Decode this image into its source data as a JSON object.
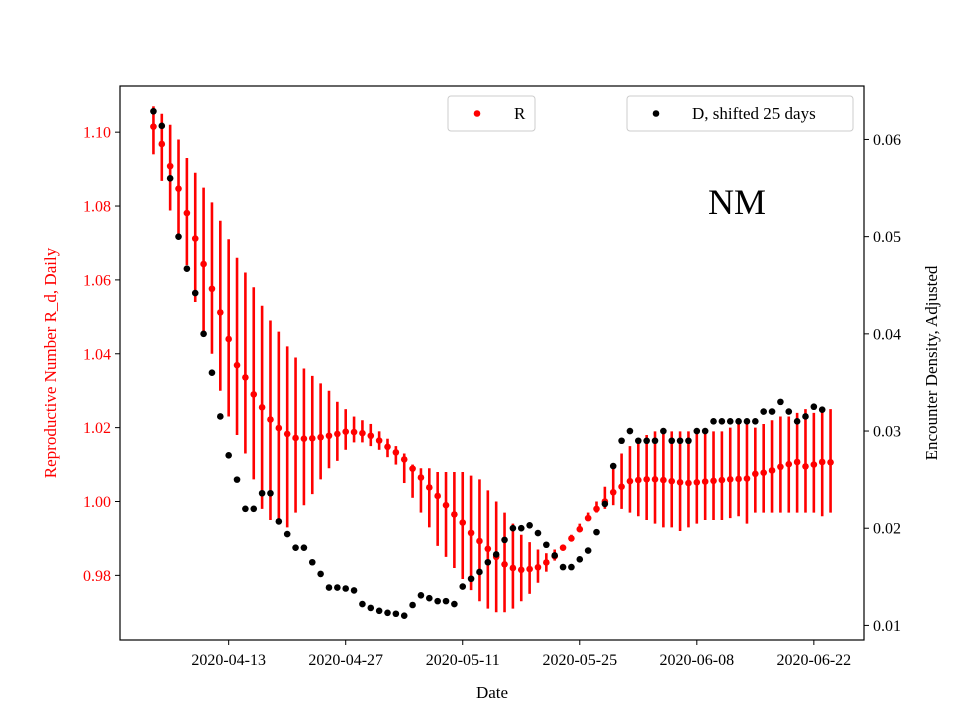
{
  "chart_data": {
    "type": "scatter",
    "xlabel": "Date",
    "ylabel_left": "Reproductive Number R_d, Daily",
    "ylabel_right": "Encounter Density, Adjusted",
    "annotation": "NM",
    "x_ticks": [
      "2020-04-13",
      "2020-04-27",
      "2020-05-11",
      "2020-05-25",
      "2020-06-08",
      "2020-06-22"
    ],
    "y_left_ticks": [
      "0.98",
      "1.00",
      "1.02",
      "1.04",
      "1.06",
      "1.08",
      "1.10"
    ],
    "y_right_ticks": [
      "0.01",
      "0.02",
      "0.03",
      "0.04",
      "0.05",
      "0.06"
    ],
    "x_range": [
      "2020-03-31",
      "2020-06-28"
    ],
    "y_left_range": [
      0.9625,
      1.1125
    ],
    "y_right_range": [
      0.0085,
      0.0655
    ],
    "legend_left": {
      "label": "R",
      "placement": "upper-center"
    },
    "legend_right": {
      "label": "D, shifted 25 days",
      "placement": "upper-right"
    },
    "colors": {
      "R": "#ff0000",
      "D": "#000000",
      "left_axis": "#ff0000",
      "right_axis": "#000000"
    },
    "series": [
      {
        "name": "R",
        "axis": "left",
        "start_date": "2020-04-04",
        "values": [
          1.1015,
          1.0968,
          1.0908,
          1.0847,
          1.0781,
          1.0712,
          1.0643,
          1.0576,
          1.0512,
          1.044,
          1.0369,
          1.0336,
          1.029,
          1.0255,
          1.0222,
          1.0199,
          1.0183,
          1.0172,
          1.017,
          1.0171,
          1.0174,
          1.0178,
          1.0183,
          1.0189,
          1.0188,
          1.0185,
          1.0178,
          1.0165,
          1.0148,
          1.0133,
          1.0114,
          1.0089,
          1.0065,
          1.0038,
          1.0015,
          0.999,
          0.9965,
          0.9943,
          0.9915,
          0.9893,
          0.9872,
          0.985,
          0.983,
          0.982,
          0.9815,
          0.9817,
          0.9822,
          0.9835,
          0.9852,
          0.9875,
          0.99,
          0.9925,
          0.9955,
          0.998,
          1.0,
          1.0025,
          1.004,
          1.0055,
          1.0058,
          1.006,
          1.006,
          1.0058,
          1.0055,
          1.0052,
          1.005,
          1.0052,
          1.0054,
          1.0056,
          1.0058,
          1.006,
          1.0061,
          1.0062,
          1.0075,
          1.0078,
          1.0084,
          1.0094,
          1.0101,
          1.0107,
          1.0095,
          1.01,
          1.0107,
          1.0106
        ],
        "err_low": [
          1.094,
          1.0868,
          1.0788,
          1.072,
          1.064,
          1.054,
          1.046,
          1.04,
          1.03,
          1.023,
          1.018,
          1.013,
          1.006,
          0.998,
          0.995,
          0.994,
          0.993,
          0.997,
          0.999,
          1.002,
          1.006,
          1.009,
          1.011,
          1.014,
          1.016,
          1.016,
          1.015,
          1.014,
          1.012,
          1.01,
          1.005,
          1.001,
          0.997,
          0.993,
          0.988,
          0.985,
          0.982,
          0.979,
          0.976,
          0.973,
          0.971,
          0.97,
          0.97,
          0.971,
          0.973,
          0.975,
          0.978,
          0.981,
          0.984,
          0.987,
          0.99,
          0.993,
          0.995,
          0.997,
          0.998,
          0.999,
          0.998,
          0.997,
          0.996,
          0.995,
          0.994,
          0.993,
          0.993,
          0.992,
          0.993,
          0.994,
          0.995,
          0.995,
          0.995,
          0.9955,
          0.996,
          0.994,
          0.997,
          0.997,
          0.997,
          0.997,
          0.997,
          0.997,
          0.997,
          0.997,
          0.996,
          0.997
        ],
        "err_high": [
          1.107,
          1.105,
          1.102,
          1.098,
          1.093,
          1.089,
          1.085,
          1.081,
          1.076,
          1.071,
          1.066,
          1.062,
          1.058,
          1.053,
          1.049,
          1.046,
          1.042,
          1.039,
          1.036,
          1.034,
          1.032,
          1.03,
          1.027,
          1.025,
          1.023,
          1.022,
          1.021,
          1.019,
          1.017,
          1.015,
          1.013,
          1.01,
          1.009,
          1.009,
          1.008,
          1.008,
          1.008,
          1.008,
          1.007,
          1.006,
          1.003,
          1.0,
          0.997,
          0.994,
          0.991,
          0.989,
          0.987,
          0.986,
          0.987,
          0.988,
          0.991,
          0.994,
          0.997,
          1.0,
          1.004,
          1.009,
          1.013,
          1.015,
          1.017,
          1.018,
          1.019,
          1.019,
          1.019,
          1.019,
          1.019,
          1.019,
          1.019,
          1.019,
          1.019,
          1.02,
          1.021,
          1.021,
          1.02,
          1.021,
          1.022,
          1.023,
          1.023,
          1.024,
          1.025,
          1.024,
          1.025,
          1.025
        ]
      },
      {
        "name": "D, shifted 25 days",
        "axis": "right",
        "start_date": "2020-04-04",
        "values": [
          0.0629,
          0.0614,
          0.056,
          0.05,
          0.0467,
          0.0442,
          0.04,
          0.036,
          0.0315,
          0.0275,
          0.025,
          0.022,
          0.022,
          0.0236,
          0.0236,
          0.0207,
          0.0194,
          0.018,
          0.018,
          0.0165,
          0.0153,
          0.0139,
          0.0139,
          0.0138,
          0.0136,
          0.0122,
          0.0118,
          0.0115,
          0.0113,
          0.0112,
          0.011,
          0.0121,
          0.0131,
          0.0128,
          0.0125,
          0.0125,
          0.0122,
          0.014,
          0.0148,
          0.0155,
          0.0165,
          0.0173,
          0.0188,
          0.02,
          0.02,
          0.0203,
          0.0195,
          0.0183,
          0.0172,
          0.016,
          0.016,
          0.0168,
          0.0177,
          0.0196,
          0.0225,
          0.0264,
          0.029,
          0.03,
          0.029,
          0.029,
          0.029,
          0.03,
          0.029,
          0.029,
          0.029,
          0.03,
          0.03,
          0.031,
          0.031,
          0.031,
          0.031,
          0.031,
          0.031,
          0.032,
          0.032,
          0.033,
          0.032,
          0.031,
          0.0315,
          0.0325,
          0.0322
        ]
      }
    ]
  }
}
